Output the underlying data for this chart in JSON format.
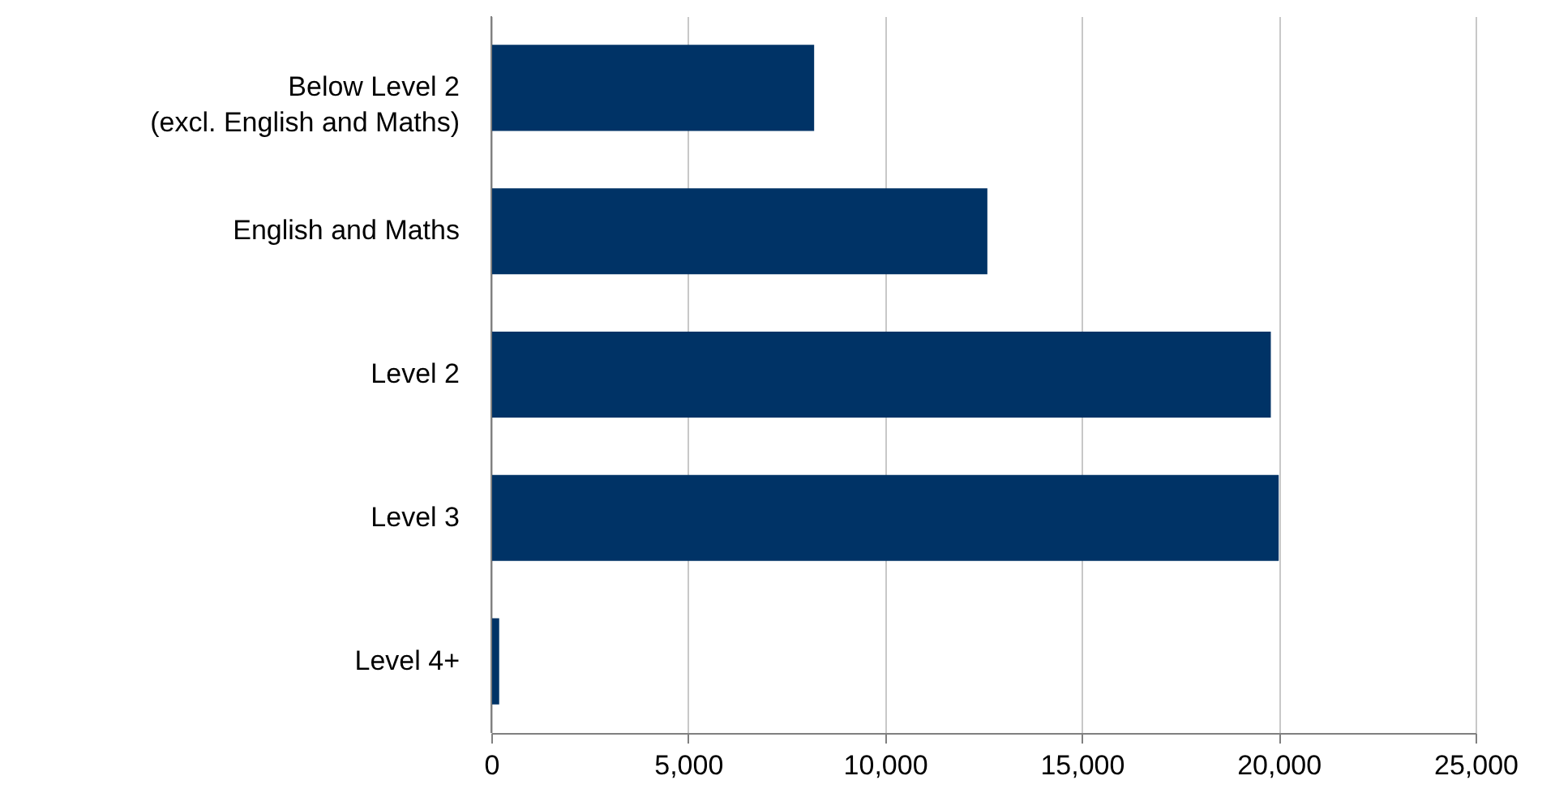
{
  "chart_data": {
    "type": "bar",
    "orientation": "horizontal",
    "categories": [
      "Below Level 2 (excl. English and Maths)",
      "English and Maths",
      "Level 2",
      "Level 3",
      "Level 4+"
    ],
    "values": [
      8200,
      12600,
      19800,
      20000,
      200
    ],
    "color": "#003366",
    "xlim": [
      0,
      25000
    ],
    "xticks": [
      0,
      {
        "value": 5000,
        "label": "5,000"
      },
      {
        "value": 10000,
        "label": "10,000"
      },
      {
        "value": 15000,
        "label": "15,000"
      },
      {
        "value": 20000,
        "label": "20,000"
      },
      {
        "value": 25000,
        "label": "25,000"
      }
    ],
    "grid": "x"
  }
}
